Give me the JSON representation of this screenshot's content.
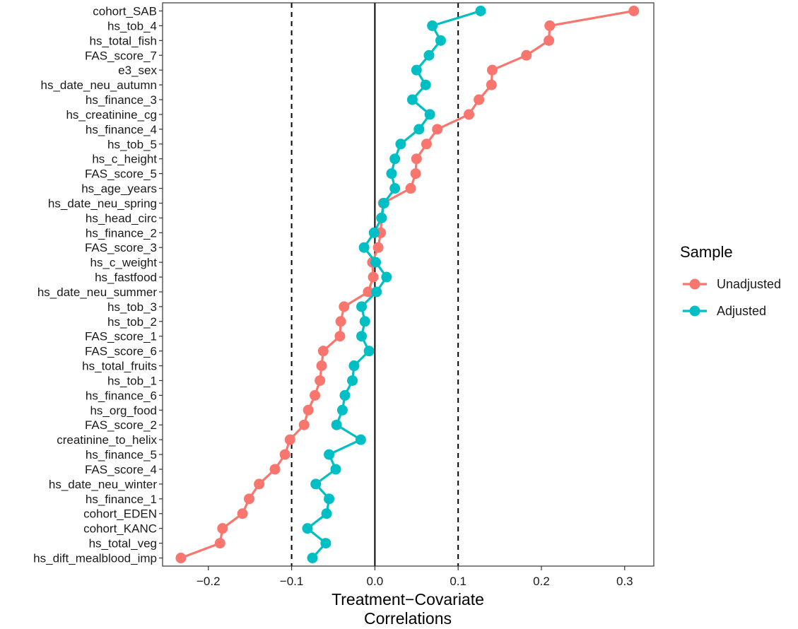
{
  "chart_data": {
    "type": "line",
    "xlabel": [
      "Treatment−Covariate",
      "Correlations"
    ],
    "ylabel": "",
    "xlim": [
      -0.255,
      0.335
    ],
    "xticks": [
      -0.2,
      -0.1,
      0.0,
      0.1,
      0.2,
      0.3
    ],
    "xtick_labels": [
      "−0.2",
      "−0.1",
      "0.0",
      "0.1",
      "0.2",
      "0.3"
    ],
    "reference_lines": {
      "solid": [
        0.0
      ],
      "dashed": [
        -0.1,
        0.1
      ]
    },
    "grid": false,
    "legend": {
      "title": "Sample",
      "position": "right"
    },
    "categories": [
      "cohort_SAB",
      "hs_tob_4",
      "hs_total_fish",
      "FAS_score_7",
      "e3_sex",
      "hs_date_neu_autumn",
      "hs_finance_3",
      "hs_creatinine_cg",
      "hs_finance_4",
      "hs_tob_5",
      "hs_c_height",
      "FAS_score_5",
      "hs_age_years",
      "hs_date_neu_spring",
      "hs_head_circ",
      "hs_finance_2",
      "FAS_score_3",
      "hs_c_weight",
      "hs_fastfood",
      "hs_date_neu_summer",
      "hs_tob_3",
      "hs_tob_2",
      "FAS_score_1",
      "FAS_score_6",
      "hs_total_fruits",
      "hs_tob_1",
      "hs_finance_6",
      "hs_org_food",
      "FAS_score_2",
      "creatinine_to_helix",
      "hs_finance_5",
      "FAS_score_4",
      "hs_date_neu_winter",
      "hs_finance_1",
      "cohort_EDEN",
      "cohort_KANC",
      "hs_total_veg",
      "hs_dift_mealblood_imp"
    ],
    "series": [
      {
        "name": "Unadjusted",
        "color": "#F8766D",
        "values": [
          0.311,
          0.21,
          0.209,
          0.182,
          0.141,
          0.14,
          0.125,
          0.113,
          0.075,
          0.062,
          0.05,
          0.049,
          0.043,
          0.01,
          0.008,
          0.007,
          0.004,
          -0.003,
          -0.002,
          -0.008,
          -0.037,
          -0.041,
          -0.042,
          -0.062,
          -0.064,
          -0.066,
          -0.072,
          -0.08,
          -0.085,
          -0.102,
          -0.108,
          -0.12,
          -0.139,
          -0.151,
          -0.159,
          -0.183,
          -0.186,
          -0.233
        ]
      },
      {
        "name": "Adjusted",
        "color": "#00BFC4",
        "values": [
          0.127,
          0.069,
          0.079,
          0.065,
          0.05,
          0.061,
          0.045,
          0.066,
          0.053,
          0.031,
          0.024,
          0.02,
          0.024,
          0.011,
          0.008,
          -0.001,
          -0.013,
          0.001,
          0.014,
          0.002,
          -0.016,
          -0.012,
          -0.016,
          -0.007,
          -0.025,
          -0.027,
          -0.036,
          -0.039,
          -0.046,
          -0.017,
          -0.055,
          -0.047,
          -0.071,
          -0.055,
          -0.058,
          -0.081,
          -0.059,
          -0.075
        ]
      }
    ]
  }
}
